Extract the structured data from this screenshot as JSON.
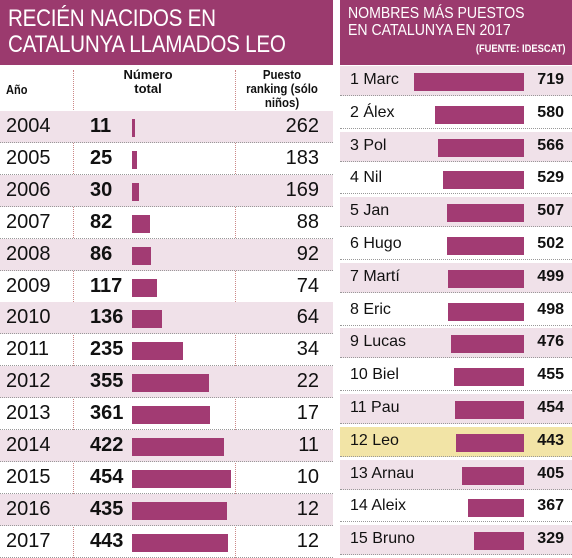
{
  "colors": {
    "accent": "#9b3a6e",
    "bar": "#a23b73",
    "row_alt": "#f0e1e9",
    "highlight": "#f2e4a6"
  },
  "left": {
    "title_line1": "RECIÉN NACIDOS EN",
    "title_line2": "CATALUNYA LLAMADOS LEO",
    "header_year": "Año",
    "header_number": "Número total",
    "header_rank": "Puesto ranking (sólo niños)"
  },
  "right": {
    "title_line1": "NOMBRES MÁS PUESTOS",
    "title_line2": "EN CATALUNYA EN 2017",
    "source": "(FUENTE: IDESCAT)"
  },
  "chart_data": [
    {
      "type": "bar",
      "title": "RECIÉN NACIDOS EN CATALUNYA LLAMADOS LEO",
      "columns": [
        "Año",
        "Número total",
        "Puesto ranking (sólo niños)"
      ],
      "rows": [
        {
          "year": "2004",
          "value": 11,
          "rank": 262
        },
        {
          "year": "2005",
          "value": 25,
          "rank": 183
        },
        {
          "year": "2006",
          "value": 30,
          "rank": 169
        },
        {
          "year": "2007",
          "value": 82,
          "rank": 88
        },
        {
          "year": "2008",
          "value": 86,
          "rank": 92
        },
        {
          "year": "2009",
          "value": 117,
          "rank": 74
        },
        {
          "year": "2010",
          "value": 136,
          "rank": 64
        },
        {
          "year": "2011",
          "value": 235,
          "rank": 34
        },
        {
          "year": "2012",
          "value": 355,
          "rank": 22
        },
        {
          "year": "2013",
          "value": 361,
          "rank": 17
        },
        {
          "year": "2014",
          "value": 422,
          "rank": 11
        },
        {
          "year": "2015",
          "value": 454,
          "rank": 10
        },
        {
          "year": "2016",
          "value": 435,
          "rank": 12
        },
        {
          "year": "2017",
          "value": 443,
          "rank": 12
        }
      ],
      "ylim": [
        0,
        460
      ]
    },
    {
      "type": "bar",
      "title": "NOMBRES MÁS PUESTOS EN CATALUNYA EN 2017",
      "rows": [
        {
          "label": "1 Marc",
          "value": 719
        },
        {
          "label": "2 Álex",
          "value": 580
        },
        {
          "label": "3 Pol",
          "value": 566
        },
        {
          "label": "4 Nil",
          "value": 529
        },
        {
          "label": "5 Jan",
          "value": 507
        },
        {
          "label": "6 Hugo",
          "value": 502
        },
        {
          "label": "7 Martí",
          "value": 499
        },
        {
          "label": "8 Eric",
          "value": 498
        },
        {
          "label": "9 Lucas",
          "value": 476
        },
        {
          "label": "10 Biel",
          "value": 455
        },
        {
          "label": "11 Pau",
          "value": 454
        },
        {
          "label": "12 Leo",
          "value": 443,
          "highlight": true
        },
        {
          "label": "13 Arnau",
          "value": 405
        },
        {
          "label": "14 Aleix",
          "value": 367
        },
        {
          "label": "15 Bruno",
          "value": 329
        }
      ],
      "ylim": [
        0,
        720
      ]
    }
  ]
}
